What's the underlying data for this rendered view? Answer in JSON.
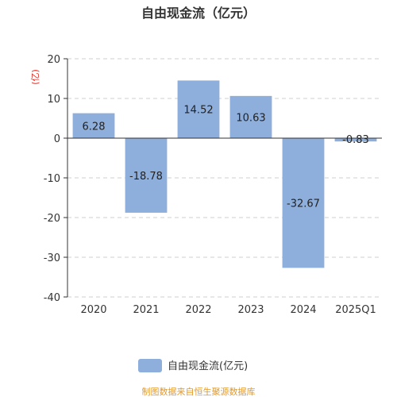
{
  "chart_data": {
    "type": "bar",
    "title": "自由现金流（亿元）",
    "ylabel": "(亿)",
    "categories": [
      "2020",
      "2021",
      "2022",
      "2023",
      "2024",
      "2025Q1"
    ],
    "series": [
      {
        "name": "自由现金流(亿元)",
        "values": [
          6.28,
          -18.78,
          14.52,
          10.63,
          -32.67,
          -0.83
        ],
        "color": "#8eaedb"
      }
    ],
    "ylim": [
      -40,
      20
    ],
    "yticks": [
      20,
      10,
      0,
      -10,
      -20,
      -30,
      -40
    ],
    "grid": true,
    "legend": "bottom-center",
    "source": "制图数据来自恒生聚源数据库"
  }
}
